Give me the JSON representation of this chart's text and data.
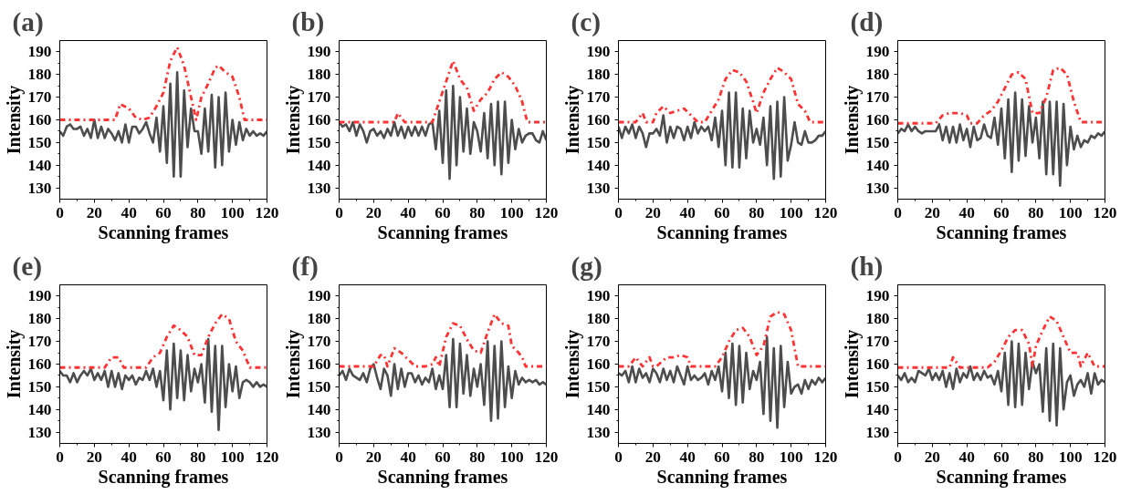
{
  "chart_data": [
    {
      "type": "line",
      "title": "(a)",
      "xlabel": "Scanning frames",
      "ylabel": "Intensity",
      "x": [
        0,
        2,
        4,
        6,
        8,
        10,
        12,
        14,
        16,
        18,
        20,
        22,
        24,
        26,
        28,
        30,
        32,
        34,
        36,
        38,
        40,
        42,
        44,
        46,
        48,
        50,
        52,
        54,
        56,
        58,
        60,
        62,
        64,
        66,
        68,
        70,
        72,
        74,
        76,
        78,
        80,
        82,
        84,
        86,
        88,
        90,
        92,
        94,
        96,
        98,
        100,
        102,
        104,
        106,
        108,
        110,
        112,
        114,
        116,
        118,
        120
      ],
      "xlim": [
        0,
        120
      ],
      "ylim": [
        125,
        195
      ],
      "xticks": [
        0,
        20,
        40,
        60,
        80,
        100,
        120
      ],
      "yticks": [
        130,
        140,
        150,
        160,
        170,
        180,
        190
      ],
      "grid": false,
      "series": [
        {
          "color": "#4d4d4d",
          "line_style": "solid",
          "values": [
            155,
            153,
            157,
            158,
            156,
            156,
            157,
            153,
            156,
            152,
            160,
            152,
            157,
            152,
            156,
            154,
            151,
            155,
            150,
            158,
            150,
            157,
            157,
            154,
            156,
            159,
            154,
            150,
            161,
            146,
            166,
            141,
            176,
            135,
            181,
            135,
            173,
            148,
            165,
            155,
            155,
            145,
            165,
            146,
            171,
            139,
            170,
            140,
            172,
            146,
            160,
            149,
            159,
            151,
            156,
            153,
            155,
            153,
            154,
            153,
            155
          ]
        },
        {
          "color": "#ff3333",
          "line_style": "dashdot",
          "x": [
            0,
            32,
            35,
            40,
            44,
            48,
            52,
            56,
            60,
            64,
            68,
            72,
            76,
            79,
            82,
            86,
            90,
            92,
            96,
            100,
            104,
            107,
            120
          ],
          "values": [
            160,
            160,
            167,
            165,
            161,
            160,
            161,
            166,
            172,
            186,
            192,
            184,
            170,
            160,
            170,
            176,
            183,
            184,
            181,
            179,
            170,
            160,
            160
          ]
        }
      ]
    },
    {
      "type": "line",
      "title": "(b)",
      "xlabel": "Scanning frames",
      "ylabel": "Intensity",
      "x": [
        0,
        2,
        4,
        6,
        8,
        10,
        12,
        14,
        16,
        18,
        20,
        22,
        24,
        26,
        28,
        30,
        32,
        34,
        36,
        38,
        40,
        42,
        44,
        46,
        48,
        50,
        52,
        54,
        56,
        58,
        60,
        62,
        64,
        66,
        68,
        70,
        72,
        74,
        76,
        78,
        80,
        82,
        84,
        86,
        88,
        90,
        92,
        94,
        96,
        98,
        100,
        102,
        104,
        106,
        108,
        110,
        112,
        114,
        116,
        118,
        120
      ],
      "xlim": [
        0,
        120
      ],
      "ylim": [
        125,
        195
      ],
      "xticks": [
        0,
        20,
        40,
        60,
        80,
        100,
        120
      ],
      "yticks": [
        130,
        140,
        150,
        160,
        170,
        180,
        190
      ],
      "grid": false,
      "series": [
        {
          "color": "#4d4d4d",
          "line_style": "solid",
          "values": [
            159,
            157,
            158,
            155,
            159,
            153,
            158,
            155,
            150,
            155,
            156,
            153,
            155,
            152,
            156,
            153,
            159,
            153,
            157,
            152,
            157,
            153,
            157,
            153,
            157,
            153,
            158,
            159,
            147,
            164,
            141,
            173,
            134,
            175,
            140,
            170,
            146,
            165,
            145,
            159,
            155,
            146,
            163,
            143,
            167,
            140,
            168,
            136,
            168,
            141,
            160,
            147,
            156,
            150,
            153,
            154,
            154,
            151,
            150,
            155,
            151
          ]
        },
        {
          "color": "#ff3333",
          "line_style": "dashdot",
          "x": [
            0,
            32,
            34,
            38,
            54,
            58,
            62,
            66,
            70,
            74,
            78,
            82,
            86,
            90,
            94,
            98,
            102,
            106,
            109,
            120
          ],
          "values": [
            159,
            159,
            163,
            159,
            159,
            168,
            177,
            186,
            178,
            174,
            164,
            169,
            172,
            178,
            181,
            179,
            175,
            168,
            159,
            159
          ]
        }
      ]
    },
    {
      "type": "line",
      "title": "(c)",
      "xlabel": "Scanning frames",
      "ylabel": "Intensity",
      "x": [
        0,
        2,
        4,
        6,
        8,
        10,
        12,
        14,
        16,
        18,
        20,
        22,
        24,
        26,
        28,
        30,
        32,
        34,
        36,
        38,
        40,
        42,
        44,
        46,
        48,
        50,
        52,
        54,
        56,
        58,
        60,
        62,
        64,
        66,
        68,
        70,
        72,
        74,
        76,
        78,
        80,
        82,
        84,
        86,
        88,
        90,
        92,
        94,
        96,
        98,
        100,
        102,
        104,
        106,
        108,
        110,
        112,
        114,
        116,
        118,
        120
      ],
      "xlim": [
        0,
        120
      ],
      "ylim": [
        125,
        195
      ],
      "xticks": [
        0,
        20,
        40,
        60,
        80,
        100,
        120
      ],
      "yticks": [
        130,
        140,
        150,
        160,
        170,
        180,
        190
      ],
      "grid": false,
      "series": [
        {
          "color": "#4d4d4d",
          "line_style": "solid",
          "values": [
            157,
            152,
            157,
            154,
            158,
            152,
            157,
            154,
            148,
            154,
            154,
            156,
            153,
            162,
            150,
            157,
            152,
            157,
            156,
            151,
            157,
            152,
            159,
            154,
            157,
            155,
            157,
            151,
            161,
            148,
            164,
            140,
            172,
            139,
            172,
            139,
            165,
            143,
            164,
            150,
            156,
            149,
            161,
            140,
            166,
            134,
            168,
            135,
            170,
            142,
            149,
            159,
            150,
            149,
            155,
            150,
            150,
            151,
            153,
            153,
            155
          ]
        },
        {
          "color": "#ff3333",
          "line_style": "dashdot",
          "x": [
            0,
            10,
            14,
            16,
            20,
            22,
            26,
            30,
            34,
            38,
            42,
            46,
            50,
            54,
            58,
            62,
            66,
            70,
            74,
            78,
            80,
            84,
            88,
            92,
            96,
            100,
            104,
            108,
            111,
            120
          ],
          "values": [
            159,
            159,
            163,
            159,
            159,
            163,
            166,
            163,
            164,
            165,
            162,
            159,
            159,
            164,
            169,
            178,
            182,
            181,
            177,
            168,
            163,
            172,
            178,
            183,
            181,
            178,
            167,
            164,
            159,
            159
          ]
        }
      ]
    },
    {
      "type": "line",
      "title": "(d)",
      "xlabel": "Scanning frames",
      "ylabel": "Intensity",
      "x": [
        0,
        2,
        4,
        6,
        8,
        10,
        12,
        14,
        16,
        18,
        20,
        22,
        24,
        26,
        28,
        30,
        32,
        34,
        36,
        38,
        40,
        42,
        44,
        46,
        48,
        50,
        52,
        54,
        56,
        58,
        60,
        62,
        64,
        66,
        68,
        70,
        72,
        74,
        76,
        78,
        80,
        82,
        84,
        86,
        88,
        90,
        92,
        94,
        96,
        98,
        100,
        102,
        104,
        106,
        108,
        110,
        112,
        114,
        116,
        118,
        120
      ],
      "xlim": [
        0,
        120
      ],
      "ylim": [
        125,
        195
      ],
      "xticks": [
        0,
        20,
        40,
        60,
        80,
        100,
        120
      ],
      "yticks": [
        130,
        140,
        150,
        160,
        170,
        180,
        190
      ],
      "grid": false,
      "series": [
        {
          "color": "#4d4d4d",
          "line_style": "solid",
          "values": [
            154,
            156,
            155,
            158,
            155,
            157,
            155,
            154,
            155,
            155,
            155,
            155,
            158,
            151,
            157,
            150,
            157,
            150,
            158,
            151,
            156,
            148,
            157,
            151,
            152,
            158,
            153,
            152,
            161,
            149,
            165,
            143,
            169,
            137,
            172,
            142,
            169,
            144,
            166,
            150,
            161,
            143,
            168,
            136,
            168,
            136,
            168,
            131,
            167,
            140,
            157,
            147,
            153,
            148,
            151,
            150,
            153,
            152,
            154,
            153,
            155
          ]
        },
        {
          "color": "#ff3333",
          "line_style": "dashdot",
          "x": [
            0,
            22,
            26,
            30,
            36,
            40,
            42,
            46,
            50,
            54,
            58,
            62,
            66,
            70,
            74,
            78,
            82,
            86,
            90,
            94,
            98,
            102,
            106,
            120
          ],
          "values": [
            158.5,
            158.5,
            162,
            163,
            163,
            162,
            158.5,
            158.5,
            162,
            164,
            168,
            174,
            180,
            181,
            178,
            163,
            163,
            170,
            182,
            183,
            180,
            168,
            159,
            159
          ]
        }
      ]
    },
    {
      "type": "line",
      "title": "(e)",
      "xlabel": "Scanning frames",
      "ylabel": "Intensity",
      "x": [
        0,
        2,
        4,
        6,
        8,
        10,
        12,
        14,
        16,
        18,
        20,
        22,
        24,
        26,
        28,
        30,
        32,
        34,
        36,
        38,
        40,
        42,
        44,
        46,
        48,
        50,
        52,
        54,
        56,
        58,
        60,
        62,
        64,
        66,
        68,
        70,
        72,
        74,
        76,
        78,
        80,
        82,
        84,
        86,
        88,
        90,
        92,
        94,
        96,
        98,
        100,
        102,
        104,
        106,
        108,
        110,
        112,
        114,
        116,
        118,
        120
      ],
      "xlim": [
        0,
        120
      ],
      "ylim": [
        125,
        195
      ],
      "xticks": [
        0,
        20,
        40,
        60,
        80,
        100,
        120
      ],
      "yticks": [
        130,
        140,
        150,
        160,
        170,
        180,
        190
      ],
      "grid": false,
      "series": [
        {
          "color": "#4d4d4d",
          "line_style": "solid",
          "values": [
            157,
            155,
            155,
            152,
            156,
            152,
            155,
            157,
            155,
            158,
            153,
            156,
            153,
            157,
            150,
            157,
            150,
            156,
            149,
            155,
            153,
            155,
            151,
            154,
            153,
            157,
            153,
            158,
            150,
            157,
            144,
            166,
            140,
            169,
            145,
            166,
            144,
            164,
            148,
            158,
            152,
            160,
            143,
            171,
            139,
            168,
            131,
            168,
            141,
            160,
            148,
            159,
            145,
            152,
            153,
            152,
            150,
            152,
            150,
            151,
            150
          ]
        },
        {
          "color": "#ff3333",
          "line_style": "dashdot",
          "x": [
            0,
            26,
            30,
            34,
            37,
            50,
            54,
            58,
            62,
            66,
            70,
            74,
            78,
            82,
            86,
            90,
            94,
            98,
            102,
            106,
            110,
            120
          ],
          "values": [
            158.5,
            158.5,
            163,
            163,
            158.5,
            158.5,
            163,
            165,
            172,
            177,
            175,
            172,
            164,
            164,
            172,
            178,
            182,
            180,
            170,
            166,
            158.5,
            158.5
          ]
        }
      ]
    },
    {
      "type": "line",
      "title": "(f)",
      "xlabel": "Scanning frames",
      "ylabel": "Intensity",
      "x": [
        0,
        2,
        4,
        6,
        8,
        10,
        12,
        14,
        16,
        18,
        20,
        22,
        24,
        26,
        28,
        30,
        32,
        34,
        36,
        38,
        40,
        42,
        44,
        46,
        48,
        50,
        52,
        54,
        56,
        58,
        60,
        62,
        64,
        66,
        68,
        70,
        72,
        74,
        76,
        78,
        80,
        82,
        84,
        86,
        88,
        90,
        92,
        94,
        96,
        98,
        100,
        102,
        104,
        106,
        108,
        110,
        112,
        114,
        116,
        118,
        120
      ],
      "xlim": [
        0,
        120
      ],
      "ylim": [
        125,
        195
      ],
      "xticks": [
        0,
        20,
        40,
        60,
        80,
        100,
        120
      ],
      "yticks": [
        130,
        140,
        150,
        160,
        170,
        180,
        190
      ],
      "grid": false,
      "series": [
        {
          "color": "#4d4d4d",
          "line_style": "solid",
          "values": [
            155,
            157,
            153,
            158,
            155,
            154,
            153,
            156,
            152,
            158,
            160,
            154,
            149,
            158,
            155,
            146,
            160,
            149,
            158,
            150,
            156,
            156,
            152,
            155,
            151,
            154,
            152,
            158,
            149,
            155,
            149,
            164,
            141,
            171,
            141,
            169,
            147,
            164,
            146,
            158,
            150,
            160,
            142,
            170,
            135,
            168,
            136,
            170,
            141,
            159,
            145,
            157,
            151,
            154,
            152,
            153,
            152,
            153,
            151,
            152,
            151
          ]
        },
        {
          "color": "#ff3333",
          "line_style": "dashdot",
          "x": [
            0,
            20,
            24,
            26,
            28,
            32,
            36,
            40,
            44,
            50,
            54,
            56,
            58,
            62,
            66,
            70,
            74,
            78,
            82,
            86,
            90,
            94,
            98,
            100,
            104,
            106,
            108,
            120
          ],
          "values": [
            159,
            159,
            164,
            164,
            159,
            167,
            165,
            162,
            159,
            159,
            160,
            163,
            159,
            172,
            178,
            177,
            171,
            166,
            165,
            174,
            182,
            178,
            177,
            168,
            165,
            163,
            159,
            159
          ]
        }
      ]
    },
    {
      "type": "line",
      "title": "(g)",
      "xlabel": "Scanning frames",
      "ylabel": "Intensity",
      "x": [
        0,
        2,
        4,
        6,
        8,
        10,
        12,
        14,
        16,
        18,
        20,
        22,
        24,
        26,
        28,
        30,
        32,
        34,
        36,
        38,
        40,
        42,
        44,
        46,
        48,
        50,
        52,
        54,
        56,
        58,
        60,
        62,
        64,
        66,
        68,
        70,
        72,
        74,
        76,
        78,
        80,
        82,
        84,
        86,
        88,
        90,
        92,
        94,
        96,
        98,
        100,
        102,
        104,
        106,
        108,
        110,
        112,
        114,
        116,
        118,
        120
      ],
      "xlim": [
        0,
        120
      ],
      "ylim": [
        125,
        195
      ],
      "xticks": [
        0,
        20,
        40,
        60,
        80,
        100,
        120
      ],
      "yticks": [
        130,
        140,
        150,
        160,
        170,
        180,
        190
      ],
      "grid": false,
      "series": [
        {
          "color": "#4d4d4d",
          "line_style": "solid",
          "values": [
            156,
            155,
            157,
            152,
            159,
            152,
            158,
            154,
            156,
            152,
            158,
            156,
            152,
            158,
            153,
            157,
            152,
            159,
            155,
            151,
            159,
            153,
            155,
            153,
            154,
            156,
            151,
            157,
            153,
            159,
            148,
            165,
            145,
            169,
            142,
            168,
            143,
            165,
            149,
            157,
            153,
            161,
            138,
            172,
            135,
            167,
            132,
            168,
            141,
            161,
            147,
            150,
            151,
            147,
            153,
            149,
            153,
            151,
            154,
            152,
            154
          ]
        },
        {
          "color": "#ff3333",
          "line_style": "dashdot",
          "x": [
            0,
            6,
            10,
            14,
            18,
            20,
            22,
            28,
            32,
            36,
            40,
            42,
            56,
            60,
            64,
            68,
            72,
            76,
            80,
            84,
            88,
            92,
            96,
            100,
            104,
            120
          ],
          "values": [
            159,
            159,
            163,
            159,
            163,
            159,
            159,
            163,
            163,
            164,
            163,
            159,
            159,
            163,
            170,
            175,
            176,
            172,
            164,
            168,
            181,
            183,
            182,
            175,
            159,
            159
          ]
        }
      ]
    },
    {
      "type": "line",
      "title": "(h)",
      "xlabel": "Scanning frames",
      "ylabel": "Intensity",
      "x": [
        0,
        2,
        4,
        6,
        8,
        10,
        12,
        14,
        16,
        18,
        20,
        22,
        24,
        26,
        28,
        30,
        32,
        34,
        36,
        38,
        40,
        42,
        44,
        46,
        48,
        50,
        52,
        54,
        56,
        58,
        60,
        62,
        64,
        66,
        68,
        70,
        72,
        74,
        76,
        78,
        80,
        82,
        84,
        86,
        88,
        90,
        92,
        94,
        96,
        98,
        100,
        102,
        104,
        106,
        108,
        110,
        112,
        114,
        116,
        118,
        120
      ],
      "xlim": [
        0,
        120
      ],
      "ylim": [
        125,
        195
      ],
      "xticks": [
        0,
        20,
        40,
        60,
        80,
        100,
        120
      ],
      "yticks": [
        130,
        140,
        150,
        160,
        170,
        180,
        190
      ],
      "grid": false,
      "series": [
        {
          "color": "#4d4d4d",
          "line_style": "solid",
          "values": [
            155,
            153,
            156,
            152,
            154,
            152,
            157,
            156,
            155,
            158,
            153,
            156,
            153,
            157,
            150,
            156,
            149,
            158,
            152,
            156,
            154,
            159,
            153,
            156,
            153,
            157,
            154,
            155,
            151,
            157,
            148,
            165,
            142,
            170,
            141,
            169,
            142,
            165,
            149,
            161,
            156,
            160,
            139,
            167,
            135,
            169,
            133,
            167,
            140,
            152,
            155,
            146,
            151,
            153,
            150,
            156,
            147,
            156,
            151,
            153,
            152
          ]
        },
        {
          "color": "#ff3333",
          "line_style": "dashdot",
          "x": [
            0,
            30,
            32,
            36,
            52,
            56,
            60,
            64,
            68,
            72,
            76,
            78,
            80,
            84,
            88,
            92,
            96,
            100,
            104,
            106,
            110,
            114,
            120
          ],
          "values": [
            158.5,
            158.5,
            163,
            158.5,
            158.5,
            161,
            166,
            172,
            175,
            175,
            169,
            159,
            168,
            175,
            181,
            179,
            172,
            165,
            165,
            159,
            165,
            159,
            159
          ]
        }
      ]
    }
  ]
}
